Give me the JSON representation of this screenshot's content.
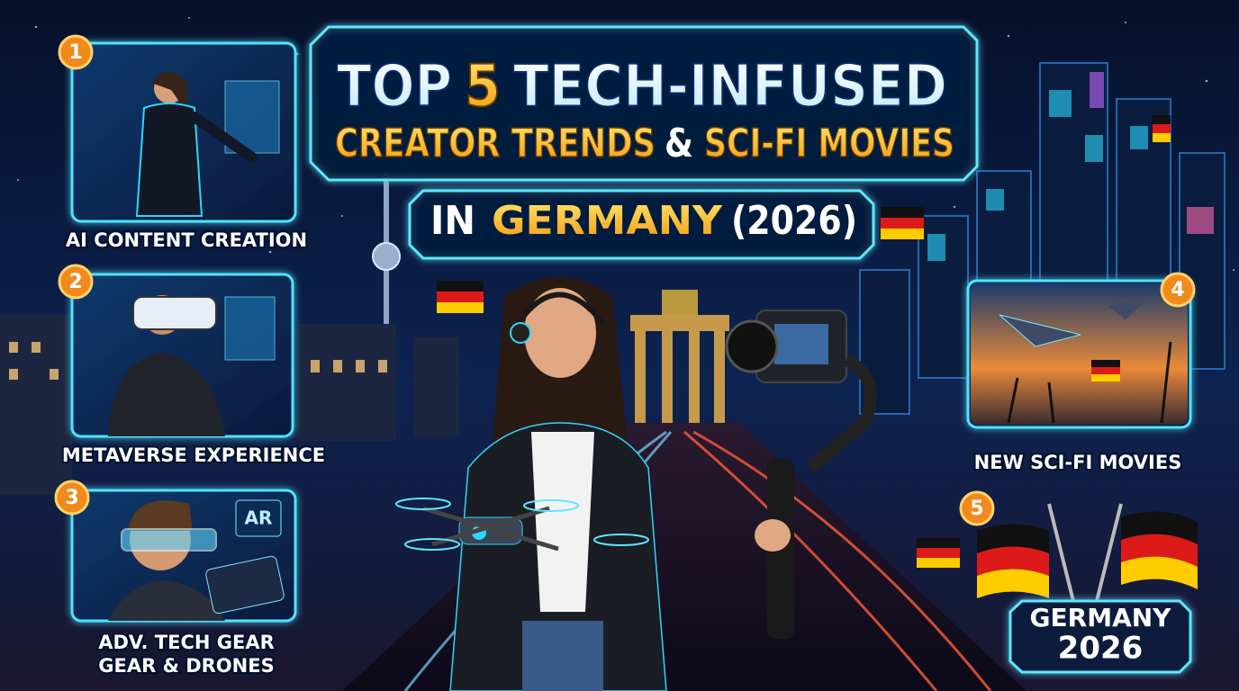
{
  "title": {
    "line1": {
      "top": "TOP",
      "number": "5",
      "rest": "TECH-INFUSED"
    },
    "line2": {
      "first": "CREATOR TRENDS",
      "amp": "&",
      "second": "SCI-FI MOVIES"
    },
    "line3": {
      "in": "IN",
      "country": "GERMANY",
      "year": "(2026)"
    }
  },
  "items": [
    {
      "number": "1",
      "label": [
        "AI CONTENT CREATION"
      ]
    },
    {
      "number": "2",
      "label": [
        "METAVERSE EXPERIENCE"
      ]
    },
    {
      "number": "3",
      "label": [
        "ADV. TECH GEAR",
        "GEAR & DRONES"
      ]
    },
    {
      "number": "4",
      "label": [
        "NEW SCI-FI MOVIES"
      ]
    },
    {
      "number": "5",
      "label": [
        "GERMANY",
        "2026"
      ]
    }
  ],
  "panel_text": "AR"
}
